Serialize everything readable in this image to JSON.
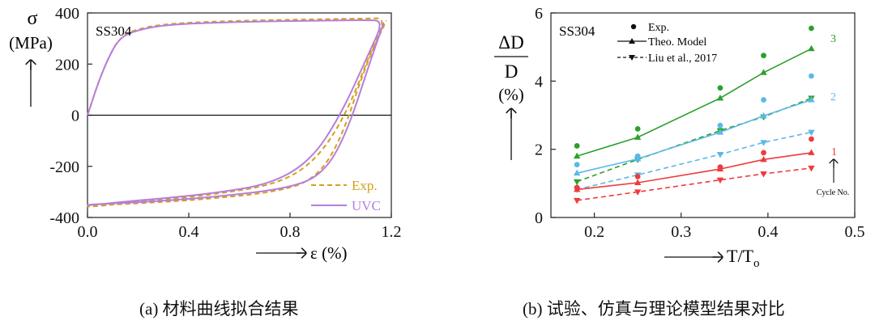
{
  "chart_data": [
    {
      "type": "line",
      "panel_label": "SS304",
      "ylabel_symbol": "σ",
      "ylabel_unit": "(MPa)",
      "xlabel": "ε (%)",
      "xlim": [
        0.0,
        1.2
      ],
      "ylim": [
        -400,
        400
      ],
      "xticks": [
        "0.0",
        "0.4",
        "0.8",
        "1.2"
      ],
      "yticks": [
        "400",
        "200",
        "0",
        "-200",
        "-400"
      ],
      "grid": false,
      "legend_position": "bottom-right",
      "series": [
        {
          "name": "Exp.",
          "style": "dashed",
          "color": "#d4a017",
          "x": [
            0.0,
            0.05,
            0.1,
            0.13,
            0.17,
            0.3,
            0.6,
            0.9,
            1.1,
            1.18,
            1.12,
            1.02,
            0.9,
            0.75,
            0.5,
            0.3,
            0.18,
            0.1,
            0.0,
            0.0,
            0.08,
            0.2,
            0.45,
            0.75,
            0.9,
            1.0,
            1.1,
            1.18
          ],
          "y": [
            0,
            150,
            260,
            300,
            330,
            358,
            370,
            375,
            378,
            380,
            250,
            0,
            -180,
            -270,
            -310,
            -330,
            -340,
            -350,
            -358,
            -355,
            -350,
            -345,
            -330,
            -300,
            -250,
            -100,
            200,
            370
          ]
        },
        {
          "name": "UVC",
          "style": "solid",
          "color": "#b57edc",
          "x": [
            0.0,
            0.05,
            0.1,
            0.13,
            0.17,
            0.3,
            0.6,
            0.9,
            1.1,
            1.17,
            1.11,
            1.0,
            0.88,
            0.72,
            0.5,
            0.3,
            0.15,
            0.05,
            0.0,
            0.0,
            0.1,
            0.25,
            0.5,
            0.8,
            0.93,
            1.02,
            1.12,
            1.17
          ],
          "y": [
            0,
            150,
            260,
            300,
            325,
            355,
            365,
            370,
            372,
            370,
            240,
            0,
            -180,
            -270,
            -305,
            -325,
            -338,
            -348,
            -352,
            -350,
            -345,
            -338,
            -320,
            -285,
            -230,
            -80,
            220,
            362
          ]
        }
      ]
    },
    {
      "type": "line",
      "panel_label": "SS304",
      "ylabel_numerator": "ΔD",
      "ylabel_denominator": "D",
      "ylabel_unit": "(%)",
      "xlabel_main": "T/T",
      "xlabel_sub": "o",
      "xlim": [
        0.15,
        0.5
      ],
      "ylim": [
        0,
        6
      ],
      "xticks": [
        "0.2",
        "0.3",
        "0.4",
        "0.5"
      ],
      "yticks": [
        "0",
        "2",
        "4",
        "6"
      ],
      "x": [
        0.18,
        0.25,
        0.345,
        0.395,
        0.45
      ],
      "grid": false,
      "legend_position": "top-left",
      "legend": [
        "Exp.",
        "Theo. Model",
        "Liu et al., 2017"
      ],
      "cycle_labels": [
        "1",
        "2",
        "3"
      ],
      "cycle_axis_label": "Cycle No.",
      "series": [
        {
          "name": "Exp.",
          "cycle": "3",
          "color": "#2ca02c",
          "marker": "circle",
          "line": "none",
          "values": [
            2.1,
            2.6,
            3.8,
            4.75,
            5.55
          ]
        },
        {
          "name": "Theo. Model",
          "cycle": "3",
          "color": "#2ca02c",
          "marker": "triangle-up",
          "line": "solid",
          "values": [
            1.8,
            2.35,
            3.5,
            4.25,
            4.95
          ]
        },
        {
          "name": "Liu et al., 2017",
          "cycle": "3",
          "color": "#2ca02c",
          "marker": "triangle-down",
          "line": "dashed",
          "values": [
            1.05,
            1.7,
            2.55,
            2.95,
            3.5
          ]
        },
        {
          "name": "Exp.",
          "cycle": "2",
          "color": "#5bb8e8",
          "marker": "circle",
          "line": "none",
          "values": [
            1.55,
            1.8,
            2.7,
            3.45,
            4.15
          ]
        },
        {
          "name": "Theo. Model",
          "cycle": "2",
          "color": "#5bb8e8",
          "marker": "triangle-up",
          "line": "solid",
          "values": [
            1.3,
            1.72,
            2.5,
            2.98,
            3.45
          ]
        },
        {
          "name": "Liu et al., 2017",
          "cycle": "2",
          "color": "#5bb8e8",
          "marker": "triangle-down",
          "line": "dashed",
          "values": [
            0.82,
            1.25,
            1.85,
            2.2,
            2.5
          ]
        },
        {
          "name": "Exp.",
          "cycle": "1",
          "color": "#ee3b3b",
          "marker": "circle",
          "line": "none",
          "values": [
            0.88,
            1.2,
            1.48,
            1.9,
            2.3
          ]
        },
        {
          "name": "Theo. Model",
          "cycle": "1",
          "color": "#ee3b3b",
          "marker": "triangle-up",
          "line": "solid",
          "values": [
            0.82,
            1.02,
            1.42,
            1.7,
            1.9
          ]
        },
        {
          "name": "Liu et al., 2017",
          "cycle": "1",
          "color": "#ee3b3b",
          "marker": "triangle-down",
          "line": "dashed",
          "values": [
            0.5,
            0.75,
            1.1,
            1.28,
            1.45
          ]
        }
      ]
    }
  ],
  "captions": {
    "a": "(a)  材料曲线拟合结果",
    "b": "(b)  试验、仿真与理论模型结果对比"
  }
}
